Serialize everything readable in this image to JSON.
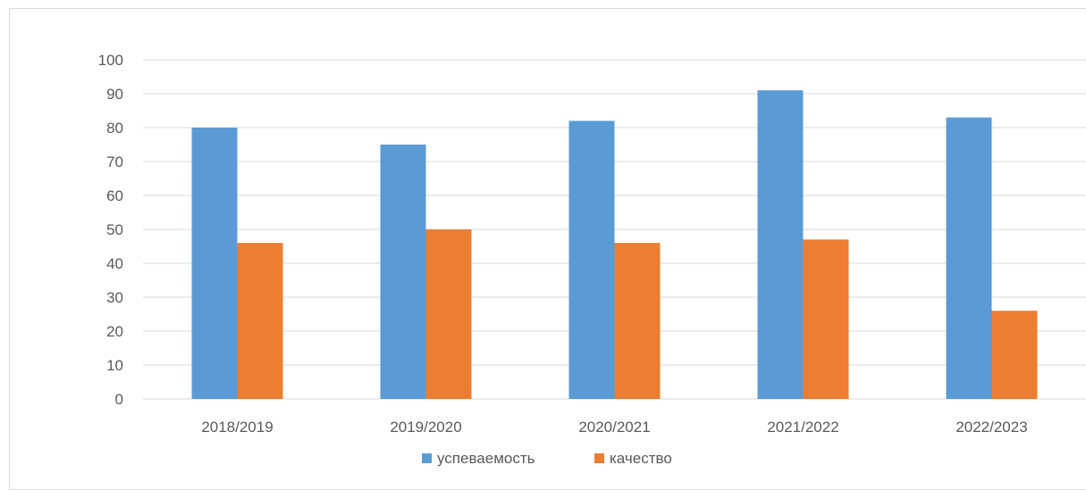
{
  "chart_data": {
    "type": "bar",
    "title": "",
    "xlabel": "",
    "ylabel": "",
    "categories": [
      "2018/2019",
      "2019/2020",
      "2020/2021",
      "2021/2022",
      "2022/2023"
    ],
    "series": [
      {
        "name": "успеваемость",
        "color": "#5b9bd5",
        "values": [
          80,
          75,
          82,
          91,
          83
        ]
      },
      {
        "name": "качество",
        "color": "#ed7d31",
        "values": [
          46,
          50,
          46,
          47,
          26
        ]
      }
    ],
    "ylim": [
      0,
      100
    ],
    "y_ticks": [
      "0",
      "10",
      "20",
      "30",
      "40",
      "50",
      "60",
      "70",
      "80",
      "90",
      "100"
    ],
    "grid": true,
    "legend_position": "bottom"
  }
}
